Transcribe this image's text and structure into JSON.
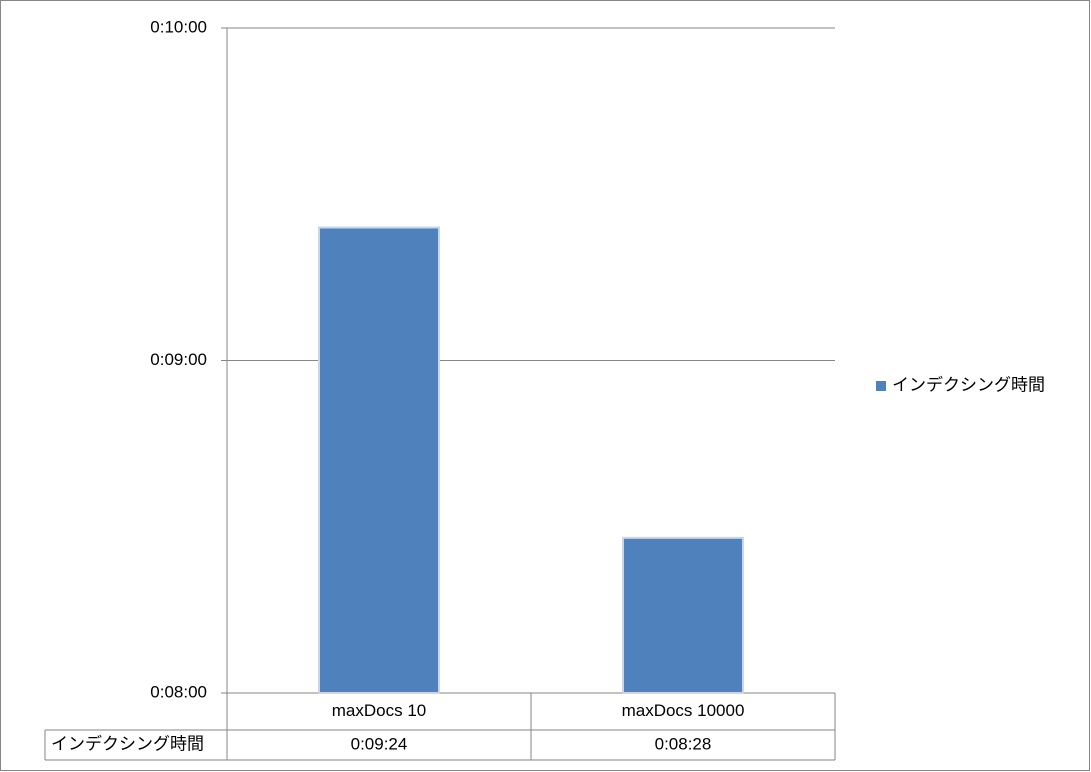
{
  "chart_data": {
    "type": "bar",
    "categories": [
      "maxDocs 10",
      "maxDocs 10000"
    ],
    "series": [
      {
        "name": "インデクシング時間",
        "color": "#4f81bd",
        "values": [
          564,
          508
        ],
        "value_labels": [
          "0:09:24",
          "0:08:28"
        ]
      }
    ],
    "ylim": [
      480,
      600
    ],
    "yticks": [
      {
        "value": 480,
        "label": "0:08:00"
      },
      {
        "value": 540,
        "label": "0:09:00"
      },
      {
        "value": 600,
        "label": "0:10:00"
      }
    ],
    "grid": true,
    "legend": "right",
    "data_table": true
  }
}
